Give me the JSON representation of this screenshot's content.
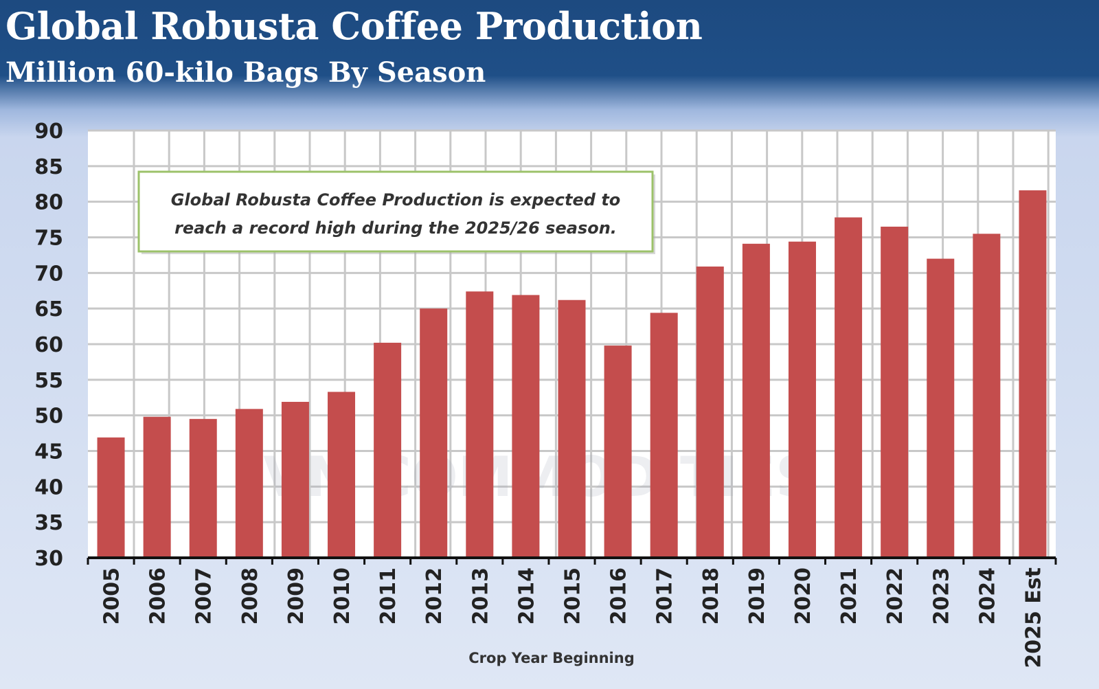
{
  "chart_data": {
    "type": "bar",
    "title": "Global Robusta Coffee Production",
    "subtitle": "Million 60-kilo Bags By Season",
    "xlabel": "Crop Year Beginning",
    "ylabel": "",
    "ylim": [
      30,
      90
    ],
    "yticks": [
      30,
      35,
      40,
      45,
      50,
      55,
      60,
      65,
      70,
      75,
      80,
      85,
      90
    ],
    "grid": true,
    "categories": [
      "2005",
      "2006",
      "2007",
      "2008",
      "2009",
      "2010",
      "2011",
      "2012",
      "2013",
      "2014",
      "2015",
      "2016",
      "2017",
      "2018",
      "2019",
      "2020",
      "2021",
      "2022",
      "2023",
      "2024",
      "2025 Est"
    ],
    "values": [
      46.9,
      49.8,
      49.5,
      50.9,
      51.9,
      53.3,
      60.2,
      65.0,
      67.4,
      66.9,
      66.2,
      59.8,
      64.4,
      70.9,
      74.1,
      74.4,
      77.8,
      76.5,
      72.0,
      75.5,
      81.6
    ],
    "bar_color": "#c44d4d",
    "annotation": [
      "Global Robusta Coffee Production is expected to",
      "reach a record high during the 2025/26 season."
    ],
    "watermark": "VN COMMODITIES"
  }
}
